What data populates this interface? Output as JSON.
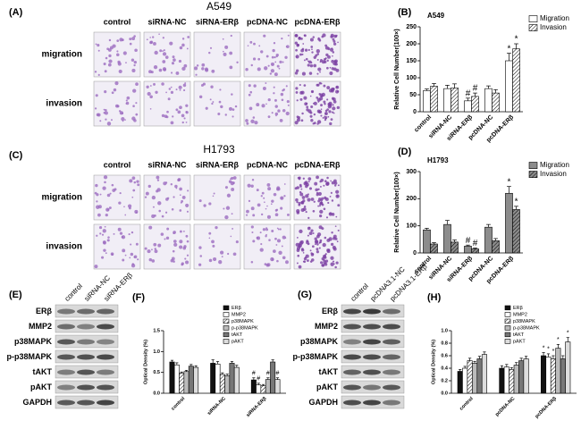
{
  "image_panels": [
    {
      "panel": "(A)",
      "title": "A549",
      "columns": [
        "control",
        "siRNA-NC",
        "siRNA-ERβ",
        "pcDNA-NC",
        "pcDNA-ERβ"
      ],
      "rows": [
        "migration",
        "invasion"
      ]
    },
    {
      "panel": "(C)",
      "title": "H1793",
      "columns": [
        "control",
        "siRNA-NC",
        "siRNA-ERβ",
        "pcDNA-NC",
        "pcDNA-ERβ"
      ],
      "rows": [
        "migration",
        "invasion"
      ]
    }
  ],
  "blots": [
    {
      "panel": "(E)",
      "lanes": [
        "control",
        "siRNA-NC",
        "siRNA-ERβ"
      ],
      "rows": [
        "ERβ",
        "MMP2",
        "p38MAPK",
        "p-p38MAPK",
        "tAKT",
        "pAKT",
        "GAPDH"
      ]
    },
    {
      "panel": "(G)",
      "lanes": [
        "control",
        "pcDNA3.1-NC",
        "pcDNA3.1-ERβ"
      ],
      "rows": [
        "ERβ",
        "MMP2",
        "p38MAPK",
        "p-p38MAPK",
        "tAKT",
        "pAKT",
        "GAPDH"
      ]
    }
  ],
  "chart_data": [
    {
      "type": "bar",
      "panel": "(B)",
      "title": "A549",
      "y_label": "Relative Cell Number(100×)",
      "categories": [
        "control",
        "siRNA-NC",
        "siRNA-ERβ",
        "pcDNA-NC",
        "pcDNA-ERβ"
      ],
      "series": [
        {
          "name": "Migration",
          "color": "#ffffff",
          "values": [
            62,
            68,
            32,
            68,
            150
          ],
          "errors": [
            5,
            10,
            8,
            8,
            22
          ],
          "markers": [
            null,
            null,
            "#",
            null,
            "*"
          ]
        },
        {
          "name": "Invasion",
          "color": "#ffffff",
          "pattern": "hatch",
          "values": [
            75,
            70,
            45,
            55,
            185
          ],
          "errors": [
            8,
            12,
            10,
            10,
            15
          ],
          "markers": [
            null,
            null,
            "#",
            null,
            "*"
          ]
        }
      ],
      "ylim": [
        0,
        250
      ],
      "yticks": [
        0,
        50,
        100,
        150,
        200,
        250
      ],
      "legend": "top-right"
    },
    {
      "type": "bar",
      "panel": "(D)",
      "title": "H1793",
      "y_label": "Relative Cell Number(100×)",
      "categories": [
        "control",
        "siRNA-NC",
        "siRNA-ERβ",
        "pcDNA-NC",
        "pcDNA-ERβ"
      ],
      "series": [
        {
          "name": "Migration",
          "color": "#8c8c8c",
          "values": [
            85,
            105,
            25,
            95,
            220
          ],
          "errors": [
            6,
            15,
            4,
            10,
            25
          ],
          "markers": [
            null,
            null,
            "#",
            null,
            "*"
          ]
        },
        {
          "name": "Invasion",
          "color": "#8c8c8c",
          "pattern": "hatch",
          "values": [
            33,
            40,
            15,
            45,
            160
          ],
          "errors": [
            5,
            8,
            3,
            8,
            12
          ],
          "markers": [
            null,
            null,
            "#",
            null,
            "*"
          ]
        }
      ],
      "ylim": [
        0,
        300
      ],
      "yticks": [
        0,
        100,
        200,
        300
      ],
      "legend": "top-right"
    },
    {
      "type": "bar",
      "panel": "(F)",
      "y_label": "Optical Density (%)",
      "categories": [
        "control",
        "siRNA-NC",
        "siRNA-ERβ"
      ],
      "series": [
        {
          "name": "ERβ",
          "color": "#111111",
          "values": [
            0.75,
            0.72,
            0.32
          ],
          "errors": [
            0.04,
            0.08,
            0.05
          ],
          "markers": [
            null,
            null,
            "#"
          ]
        },
        {
          "name": "MMP2",
          "color": "#ffffff",
          "values": [
            0.68,
            0.7,
            0.2
          ],
          "errors": [
            0.05,
            0.06,
            0.04
          ],
          "markers": [
            null,
            null,
            "#"
          ]
        },
        {
          "name": "p38MAPK",
          "color": "#ffffff",
          "pattern": "hatch",
          "values": [
            0.48,
            0.45,
            0.18
          ],
          "errors": [
            0.03,
            0.04,
            0.03
          ],
          "markers": [
            null,
            null,
            null
          ]
        },
        {
          "name": "p-p38MAPK",
          "color": "#bbbbbb",
          "values": [
            0.52,
            0.42,
            0.33
          ],
          "errors": [
            0.03,
            0.04,
            0.04
          ],
          "markers": [
            null,
            null,
            "#"
          ]
        },
        {
          "name": "tAKT",
          "color": "#777777",
          "values": [
            0.65,
            0.72,
            0.75
          ],
          "errors": [
            0.04,
            0.04,
            0.05
          ],
          "markers": [
            null,
            null,
            null
          ]
        },
        {
          "name": "pAKT",
          "color": "#dddddd",
          "values": [
            0.62,
            0.62,
            0.33
          ],
          "errors": [
            0.04,
            0.05,
            0.04
          ],
          "markers": [
            null,
            null,
            "#"
          ]
        }
      ],
      "ylim": [
        0,
        1.5
      ],
      "yticks": [
        {
          "value": 0,
          "label": "0.0"
        },
        0.5,
        {
          "value": 1,
          "label": "1.0"
        },
        1.5
      ],
      "legend": "top-right"
    },
    {
      "type": "bar",
      "panel": "(H)",
      "y_label": "Optical Density (%)",
      "categories": [
        "control",
        "pcDNA-NC",
        "pcDNA-ERβ"
      ],
      "series": [
        {
          "name": "ERβ",
          "color": "#111111",
          "values": [
            0.35,
            0.4,
            0.6
          ],
          "errors": [
            0.03,
            0.04,
            0.05
          ],
          "markers": [
            null,
            null,
            "*"
          ]
        },
        {
          "name": "MMP2",
          "color": "#ffffff",
          "values": [
            0.4,
            0.42,
            0.58
          ],
          "errors": [
            0.03,
            0.04,
            0.05
          ],
          "markers": [
            null,
            null,
            "*"
          ]
        },
        {
          "name": "p38MAPK",
          "color": "#ffffff",
          "pattern": "hatch",
          "values": [
            0.52,
            0.38,
            0.55
          ],
          "errors": [
            0.04,
            0.03,
            0.05
          ],
          "markers": [
            null,
            null,
            "*"
          ]
        },
        {
          "name": "p-p38MAPK",
          "color": "#bbbbbb",
          "values": [
            0.48,
            0.45,
            0.72
          ],
          "errors": [
            0.03,
            0.04,
            0.06
          ],
          "markers": [
            null,
            null,
            "*"
          ]
        },
        {
          "name": "tAKT",
          "color": "#777777",
          "values": [
            0.55,
            0.52,
            0.55
          ],
          "errors": [
            0.04,
            0.04,
            0.05
          ],
          "markers": [
            null,
            null,
            null
          ]
        },
        {
          "name": "pAKT",
          "color": "#dddddd",
          "values": [
            0.62,
            0.55,
            0.82
          ],
          "errors": [
            0.04,
            0.04,
            0.07
          ],
          "markers": [
            null,
            null,
            "*"
          ]
        }
      ],
      "ylim": [
        0,
        1
      ],
      "yticks": [
        {
          "value": 0,
          "label": "0.0"
        },
        0.2,
        0.4,
        0.6,
        0.8,
        {
          "value": 1,
          "label": "1.0"
        }
      ],
      "legend": "top-right"
    }
  ]
}
